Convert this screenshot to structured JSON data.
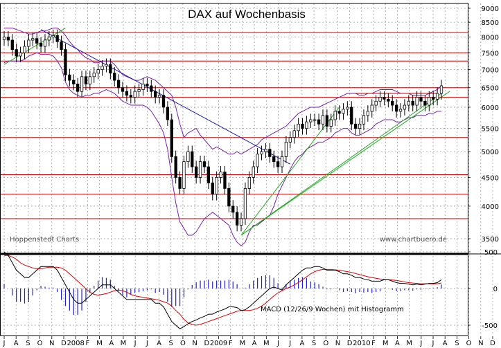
{
  "chart_data": [
    {
      "type": "candlestick",
      "title": "DAX auf Wochenbasis",
      "source_left": "Hoppenstedt Charts",
      "source_right": "www.chartbuero.de",
      "y_ticks": [
        3500,
        4000,
        4500,
        5000,
        5500,
        6000,
        6500,
        7000,
        7500,
        8000,
        8500,
        9000
      ],
      "ylim": [
        3300,
        9100
      ],
      "x_ticks": [
        "J",
        "A",
        "S",
        "O",
        "N",
        "D",
        "2008",
        "F",
        "M",
        "A",
        "M",
        "J",
        "J",
        "A",
        "S",
        "O",
        "N",
        "D",
        "2009",
        "F",
        "M",
        "A",
        "M",
        "J",
        "J",
        "A",
        "S",
        "O",
        "N",
        "D",
        "2010",
        "F",
        "M",
        "A",
        "M",
        "J",
        "J",
        "A",
        "S",
        "O",
        "N",
        "D"
      ],
      "horizontal_levels": [
        8150,
        7500,
        7250,
        6500,
        6250,
        5300,
        4550,
        4200,
        3800
      ],
      "weekly_close": [
        8000,
        7900,
        7600,
        7400,
        7500,
        7700,
        7900,
        7950,
        7800,
        7700,
        7900,
        8000,
        8050,
        7850,
        7600,
        6850,
        6700,
        6600,
        6400,
        6800,
        6600,
        6800,
        6900,
        7000,
        7100,
        7150,
        6900,
        6700,
        6500,
        6400,
        6300,
        6250,
        6400,
        6450,
        6600,
        6550,
        6400,
        6250,
        6300,
        6000,
        5700,
        4900,
        4500,
        4300,
        4800,
        5000,
        4700,
        4500,
        4800,
        4700,
        4400,
        4200,
        4500,
        4600,
        4300,
        4000,
        3900,
        3700,
        3800,
        4300,
        4500,
        4700,
        4950,
        5000,
        5050,
        4900,
        4800,
        4700,
        4900,
        5200,
        5300,
        5450,
        5600,
        5500,
        5650,
        5700,
        5700,
        5600,
        5800,
        5550,
        5700,
        5900,
        5850,
        5950,
        6000,
        5600,
        5500,
        5600,
        5800,
        5900,
        6050,
        6150,
        6250,
        6200,
        6150,
        6050,
        5900,
        5950,
        6050,
        6150,
        6050,
        6250,
        6150,
        6050,
        6250,
        6200,
        6350,
        6550
      ],
      "bollinger_upper": [
        8300,
        8300,
        8300,
        8250,
        8200,
        8150,
        8100,
        8100,
        8150,
        8200,
        8200,
        8250,
        8300,
        8300,
        8200,
        8050,
        7850,
        7700,
        7600,
        7450,
        7350,
        7300,
        7200,
        7200,
        7250,
        7250,
        7250,
        7150,
        7000,
        6850,
        6800,
        6750,
        6700,
        6700,
        6750,
        6800,
        6750,
        6700,
        6600,
        6500,
        6400,
        6300,
        6000,
        5600,
        5300,
        5400,
        5450,
        5500,
        5350,
        5250,
        5150,
        5050,
        5100,
        5050,
        5000,
        4950,
        4950,
        5000,
        4950,
        5000,
        5050,
        5100,
        5150,
        5250,
        5300,
        5350,
        5400,
        5450,
        5500,
        5550,
        5650,
        5750,
        5850,
        5900,
        5950,
        6000,
        6000,
        6000,
        6050,
        6100,
        6150,
        6200,
        6250,
        6300,
        6350,
        6350,
        6350,
        6300,
        6300,
        6350,
        6350,
        6400,
        6450,
        6450,
        6450,
        6450,
        6400,
        6350,
        6350,
        6350,
        6300,
        6300,
        6300,
        6300,
        6350,
        6400,
        6450,
        6550
      ],
      "bollinger_lower": [
        7200,
        7250,
        7250,
        7250,
        7250,
        7300,
        7400,
        7450,
        7500,
        7450,
        7450,
        7450,
        7400,
        7250,
        7050,
        6650,
        6450,
        6350,
        6300,
        6250,
        6300,
        6300,
        6350,
        6350,
        6400,
        6450,
        6400,
        6350,
        6250,
        6150,
        6100,
        6050,
        6050,
        6050,
        6050,
        6000,
        5900,
        5750,
        5600,
        5400,
        5050,
        4500,
        4050,
        3750,
        3650,
        3550,
        3550,
        3600,
        3700,
        3800,
        3850,
        3900,
        3850,
        3800,
        3750,
        3700,
        3550,
        3450,
        3400,
        3450,
        3600,
        3700,
        3700,
        3750,
        3800,
        3850,
        4000,
        4200,
        4350,
        4500,
        4650,
        4800,
        4900,
        4950,
        5050,
        5100,
        5150,
        5200,
        5200,
        5250,
        5300,
        5400,
        5450,
        5500,
        5500,
        5400,
        5350,
        5350,
        5400,
        5450,
        5500,
        5600,
        5650,
        5700,
        5700,
        5700,
        5650,
        5650,
        5700,
        5750,
        5750,
        5800,
        5800,
        5800,
        5850,
        5850,
        5900,
        5900
      ]
    },
    {
      "type": "line",
      "label": "MACD (12/26/9 Wochen) mit Histogramm",
      "y_ticks": [
        -500,
        0,
        500
      ],
      "ylim": [
        -560,
        580
      ],
      "macd": [
        500,
        450,
        350,
        250,
        200,
        150,
        150,
        200,
        250,
        300,
        300,
        300,
        300,
        250,
        150,
        50,
        -50,
        -150,
        -200,
        -200,
        -150,
        -100,
        -50,
        0,
        50,
        50,
        50,
        0,
        -50,
        -100,
        -150,
        -150,
        -150,
        -150,
        -150,
        -150,
        -150,
        -200,
        -200,
        -250,
        -350,
        -450,
        -500,
        -550,
        -520,
        -480,
        -450,
        -430,
        -400,
        -380,
        -350,
        -350,
        -320,
        -300,
        -280,
        -250,
        -250,
        -260,
        -300,
        -290,
        -250,
        -200,
        -150,
        -100,
        -50,
        0,
        20,
        0,
        -20,
        50,
        100,
        150,
        200,
        250,
        280,
        280,
        300,
        300,
        280,
        250,
        250,
        250,
        230,
        200,
        200,
        180,
        150,
        150,
        130,
        120,
        100,
        100,
        100,
        120,
        120,
        100,
        80,
        70,
        70,
        60,
        50,
        60,
        50,
        60,
        70,
        70,
        80,
        120
      ],
      "signal": [
        450,
        450,
        430,
        400,
        350,
        320,
        300,
        280,
        270,
        270,
        280,
        290,
        290,
        290,
        280,
        250,
        200,
        150,
        100,
        50,
        0,
        -50,
        -80,
        -90,
        -80,
        -70,
        -50,
        -30,
        -20,
        -30,
        -50,
        -80,
        -100,
        -110,
        -120,
        -130,
        -140,
        -150,
        -160,
        -180,
        -200,
        -240,
        -300,
        -350,
        -420,
        -470,
        -490,
        -500,
        -490,
        -470,
        -450,
        -430,
        -410,
        -390,
        -370,
        -350,
        -330,
        -310,
        -300,
        -300,
        -300,
        -290,
        -270,
        -240,
        -200,
        -150,
        -100,
        -60,
        -30,
        0,
        20,
        50,
        80,
        120,
        160,
        200,
        230,
        250,
        260,
        260,
        260,
        255,
        250,
        240,
        230,
        220,
        205,
        190,
        175,
        160,
        150,
        140,
        130,
        125,
        120,
        115,
        110,
        100,
        90,
        80,
        75,
        70,
        65,
        65,
        65,
        65,
        65,
        75
      ]
    }
  ]
}
